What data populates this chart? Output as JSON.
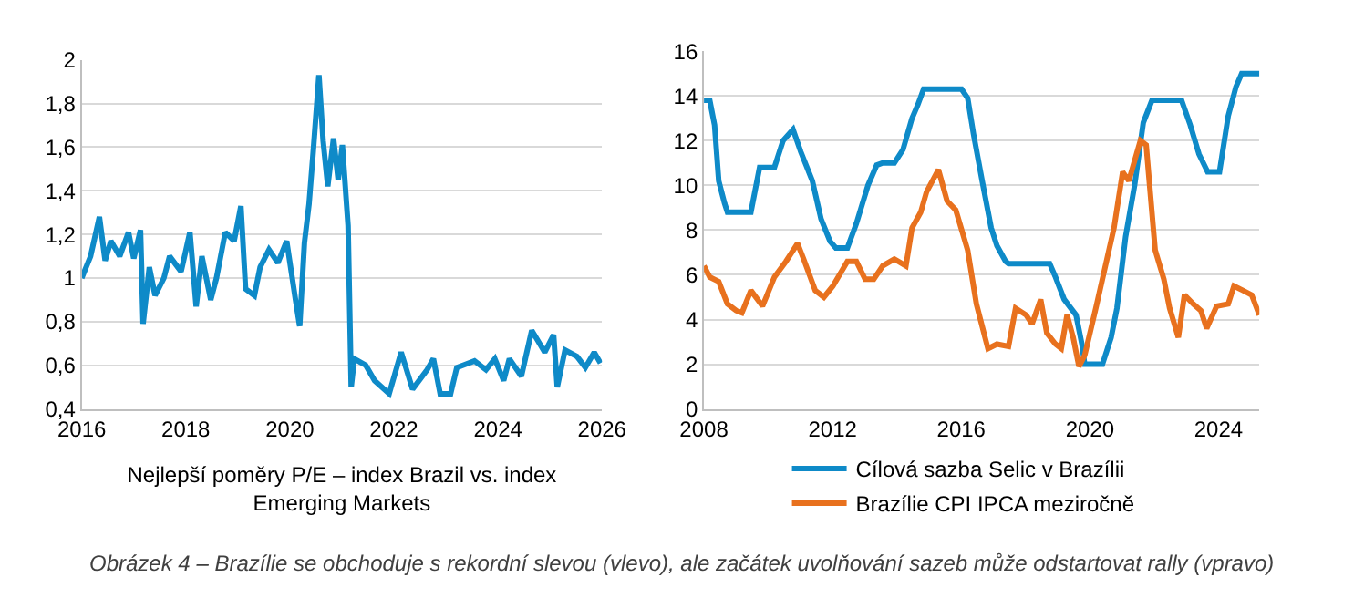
{
  "chart_data": [
    {
      "type": "line",
      "xlabel": "Nejlepší poměry P/E – index Brazil vs. index Emerging Markets",
      "x": [
        2016.0,
        2016.17,
        2016.34,
        2016.45,
        2016.56,
        2016.73,
        2016.9,
        2017.0,
        2017.13,
        2017.18,
        2017.3,
        2017.41,
        2017.58,
        2017.69,
        2017.91,
        2018.08,
        2018.2,
        2018.31,
        2018.48,
        2018.59,
        2018.76,
        2018.93,
        2019.06,
        2019.15,
        2019.32,
        2019.43,
        2019.6,
        2019.77,
        2019.94,
        2020.11,
        2020.19,
        2020.28,
        2020.37,
        2020.45,
        2020.56,
        2020.64,
        2020.73,
        2020.84,
        2020.93,
        2021.01,
        2021.12,
        2021.18,
        2021.24,
        2021.46,
        2021.63,
        2021.91,
        2022.14,
        2022.36,
        2022.64,
        2022.76,
        2022.89,
        2023.09,
        2023.21,
        2023.55,
        2023.77,
        2023.94,
        2024.11,
        2024.22,
        2024.45,
        2024.65,
        2024.9,
        2025.07,
        2025.14,
        2025.29,
        2025.52,
        2025.68,
        2025.85,
        2025.97
      ],
      "series": [
        {
          "color": "#0e8ac8",
          "values": [
            1.0,
            1.1,
            1.28,
            1.08,
            1.17,
            1.1,
            1.21,
            1.09,
            1.22,
            0.79,
            1.05,
            0.92,
            1.0,
            1.1,
            1.03,
            1.21,
            0.87,
            1.1,
            0.9,
            1.0,
            1.21,
            1.17,
            1.33,
            0.95,
            0.92,
            1.05,
            1.13,
            1.07,
            1.17,
            0.9,
            0.78,
            1.16,
            1.34,
            1.58,
            1.93,
            1.63,
            1.42,
            1.64,
            1.45,
            1.61,
            1.24,
            0.5,
            0.63,
            0.6,
            0.53,
            0.47,
            0.66,
            0.49,
            0.58,
            0.63,
            0.47,
            0.47,
            0.59,
            0.62,
            0.58,
            0.63,
            0.53,
            0.63,
            0.55,
            0.76,
            0.66,
            0.74,
            0.5,
            0.67,
            0.64,
            0.59,
            0.66,
            0.61
          ]
        }
      ],
      "xlim": [
        2016,
        2026
      ],
      "xticks": [
        2016,
        2018,
        2020,
        2022,
        2024,
        2026
      ],
      "ylim": [
        0.4,
        2
      ],
      "yticks": [
        {
          "value": 0.4,
          "label": "0,4"
        },
        {
          "value": 0.6,
          "label": "0,6"
        },
        {
          "value": 0.8,
          "label": "0,8"
        },
        1,
        {
          "value": 1.2,
          "label": "1,2"
        },
        {
          "value": 1.4,
          "label": "1,4"
        },
        {
          "value": 1.6,
          "label": "1,6"
        },
        {
          "value": 1.8,
          "label": "1,8"
        },
        2
      ],
      "grid": "y",
      "legend": false,
      "annotations": [
        "Obrázek 4 – Brazílie se obchoduje s rekordní slevou (vlevo), ale začátek uvolňování sazeb může odstartovat rally (vpravo)"
      ]
    },
    {
      "type": "line",
      "series": [
        {
          "name": "Cílová sazba Selic v Brazílii",
          "color": "#0e8ac8",
          "x": [
            2008.0,
            2008.18,
            2008.33,
            2008.46,
            2008.64,
            2008.73,
            2009.46,
            2009.73,
            2010.19,
            2010.46,
            2010.77,
            2011.01,
            2011.37,
            2011.64,
            2011.92,
            2012.1,
            2012.46,
            2012.74,
            2013.1,
            2013.37,
            2013.56,
            2013.92,
            2014.19,
            2014.47,
            2014.65,
            2014.83,
            2016.01,
            2016.2,
            2016.38,
            2016.65,
            2016.93,
            2017.11,
            2017.38,
            2017.47,
            2018.75,
            2018.93,
            2019.2,
            2019.57,
            2019.75,
            2019.84,
            2020.39,
            2020.66,
            2020.84,
            2021.11,
            2021.39,
            2021.66,
            2021.93,
            2022.85,
            2023.12,
            2023.39,
            2023.66,
            2024.03,
            2024.3,
            2024.54,
            2024.72,
            2025.27
          ],
          "values": [
            13.8,
            13.8,
            12.7,
            10.2,
            9.2,
            8.8,
            8.8,
            10.8,
            10.8,
            12.0,
            12.5,
            11.5,
            10.2,
            8.5,
            7.5,
            7.2,
            7.2,
            8.3,
            10.0,
            10.9,
            11.0,
            11.0,
            11.6,
            13.0,
            13.6,
            14.3,
            14.3,
            13.9,
            12.3,
            10.2,
            8.1,
            7.3,
            6.6,
            6.5,
            6.5,
            5.9,
            4.9,
            4.2,
            2.9,
            2.0,
            2.0,
            3.2,
            4.5,
            7.7,
            10.0,
            12.8,
            13.8,
            13.8,
            12.7,
            11.4,
            10.6,
            10.6,
            13.1,
            14.4,
            15.0,
            15.0
          ]
        },
        {
          "name": "Brazílie CPI IPCA meziročně",
          "color": "#e8711e",
          "x": [
            2008.0,
            2008.18,
            2008.46,
            2008.73,
            2009.0,
            2009.18,
            2009.46,
            2009.82,
            2010.19,
            2010.55,
            2010.91,
            2011.1,
            2011.46,
            2011.73,
            2012.01,
            2012.46,
            2012.74,
            2013.01,
            2013.28,
            2013.56,
            2013.92,
            2014.28,
            2014.47,
            2014.74,
            2014.92,
            2015.29,
            2015.56,
            2015.83,
            2016.2,
            2016.47,
            2016.83,
            2017.11,
            2017.47,
            2017.69,
            2018.02,
            2018.2,
            2018.47,
            2018.66,
            2018.93,
            2019.11,
            2019.29,
            2019.48,
            2019.66,
            2019.84,
            2020.2,
            2020.75,
            2021.02,
            2021.21,
            2021.57,
            2021.75,
            2022.03,
            2022.3,
            2022.48,
            2022.75,
            2022.94,
            2023.21,
            2023.45,
            2023.63,
            2023.94,
            2024.3,
            2024.48,
            2024.76,
            2025.03,
            2025.27
          ],
          "values": [
            6.4,
            5.9,
            5.7,
            4.7,
            4.4,
            4.3,
            5.3,
            4.6,
            5.9,
            6.6,
            7.4,
            6.7,
            5.3,
            5.0,
            5.5,
            6.6,
            6.6,
            5.8,
            5.8,
            6.4,
            6.7,
            6.4,
            8.1,
            8.8,
            9.7,
            10.7,
            9.3,
            8.9,
            7.1,
            4.7,
            2.7,
            2.9,
            2.8,
            4.5,
            4.2,
            3.8,
            4.9,
            3.4,
            2.9,
            2.7,
            4.2,
            3.2,
            1.9,
            2.4,
            4.6,
            8.1,
            10.6,
            10.2,
            12.0,
            11.8,
            7.1,
            5.8,
            4.5,
            3.2,
            5.1,
            4.7,
            4.4,
            3.6,
            4.6,
            4.7,
            5.5,
            5.3,
            5.1,
            4.2
          ]
        }
      ],
      "xlim": [
        2008,
        2025.27
      ],
      "xticks": [
        2008,
        2012,
        2016,
        2020,
        2024
      ],
      "ylim": [
        0,
        16
      ],
      "yticks": [
        0,
        2,
        4,
        6,
        8,
        10,
        12,
        14,
        16
      ],
      "grid": "y",
      "legend": "bottom"
    }
  ]
}
